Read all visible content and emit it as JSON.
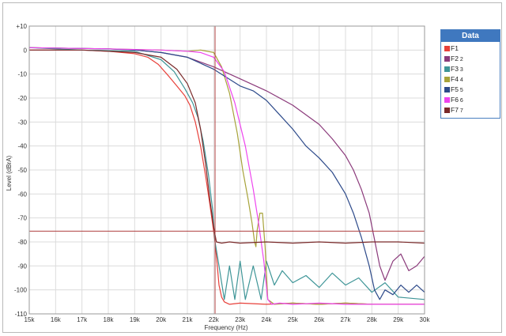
{
  "chart_data": {
    "type": "line",
    "title": "",
    "xlabel": "Frequency (Hz)",
    "ylabel": "Level (dBrA)",
    "xlim": [
      15000,
      30000
    ],
    "ylim": [
      -110,
      10
    ],
    "x_ticks": [
      15000,
      16000,
      17000,
      18000,
      19000,
      20000,
      21000,
      22000,
      23000,
      24000,
      25000,
      26000,
      27000,
      28000,
      29000,
      30000
    ],
    "x_tick_labels": [
      "15k",
      "16k",
      "17k",
      "18k",
      "19k",
      "20k",
      "21k",
      "22k",
      "23k",
      "24k",
      "25k",
      "26k",
      "27k",
      "28k",
      "29k",
      "30k"
    ],
    "y_ticks": [
      10,
      0,
      -10,
      -20,
      -30,
      -40,
      -50,
      -60,
      -70,
      -80,
      -90,
      -100,
      -110
    ],
    "y_tick_labels": [
      "+10",
      "0",
      "-10",
      "-20",
      "-30",
      "-40",
      "-50",
      "-60",
      "-70",
      "-80",
      "-90",
      "-100",
      "-110"
    ],
    "grid": true,
    "legend_position": "top-right",
    "legend_title": "Data",
    "cursor": {
      "x": 22050,
      "y": -75.5,
      "color": "#b04040"
    },
    "series": [
      {
        "name": "F1",
        "sub": "",
        "color": "#e8403a",
        "x": [
          15000,
          17000,
          18000,
          19000,
          19500,
          19900,
          20300,
          20600,
          20900,
          21100,
          21300,
          21500,
          21700,
          21850,
          21950,
          22050,
          22120,
          22200,
          22300,
          22400,
          22600,
          23000,
          24000,
          25000,
          26000,
          27000,
          28000,
          29000,
          30000
        ],
        "y": [
          0,
          0,
          -0.5,
          -1.5,
          -3,
          -6,
          -11,
          -15,
          -19,
          -23,
          -30,
          -40,
          -53,
          -64,
          -72,
          -80,
          -88,
          -98,
          -103,
          -105,
          -106,
          -105.5,
          -106,
          -105.5,
          -106,
          -105.5,
          -106,
          -106,
          -106
        ]
      },
      {
        "name": "F2",
        "sub": "2",
        "color": "#8b3a7b",
        "x": [
          15000,
          18000,
          19000,
          20000,
          21000,
          22000,
          23000,
          24000,
          25000,
          26000,
          26500,
          27000,
          27300,
          27600,
          27900,
          28100,
          28300,
          28500,
          28800,
          29100,
          29400,
          29700,
          30000
        ],
        "y": [
          1,
          0.5,
          0,
          -1,
          -3,
          -7,
          -12,
          -17,
          -23,
          -31,
          -37,
          -44,
          -50,
          -58,
          -68,
          -79,
          -90,
          -96,
          -88,
          -85,
          -92,
          -90,
          -86
        ]
      },
      {
        "name": "F3",
        "sub": "3",
        "color": "#3e9597",
        "x": [
          15000,
          17000,
          19000,
          20000,
          20500,
          20900,
          21200,
          21400,
          21600,
          21800,
          21950,
          22050,
          22200,
          22400,
          22600,
          22800,
          23000,
          23200,
          23500,
          23800,
          24000,
          24300,
          24600,
          25000,
          25500,
          26000,
          26500,
          27000,
          27500,
          28000,
          28500,
          29000,
          30000
        ],
        "y": [
          1,
          0,
          -0.5,
          -4,
          -9,
          -16,
          -22,
          -28,
          -38,
          -52,
          -66,
          -80,
          -90,
          -104,
          -90,
          -104,
          -88,
          -104,
          -90,
          -104,
          -88,
          -98,
          -92,
          -97,
          -94,
          -99,
          -93,
          -98,
          -95,
          -101,
          -97,
          -103,
          -104
        ]
      },
      {
        "name": "F4",
        "sub": "4",
        "color": "#a7a33a",
        "x": [
          15000,
          18000,
          20000,
          21000,
          21500,
          22000,
          22300,
          22600,
          22900,
          23100,
          23300,
          23450,
          23550,
          23600,
          23650,
          23750,
          23850,
          23950,
          24050,
          24300,
          25000,
          26000,
          27000,
          28000,
          29000,
          30000
        ],
        "y": [
          1,
          0.5,
          0,
          -0.5,
          0,
          -1,
          -7,
          -18,
          -35,
          -50,
          -62,
          -72,
          -80,
          -82,
          -75,
          -68,
          -68,
          -82,
          -104,
          -106,
          -105.5,
          -106,
          -105.5,
          -106,
          -106,
          -106
        ]
      },
      {
        "name": "F5",
        "sub": "5",
        "color": "#2d4a8a",
        "x": [
          15000,
          18000,
          19000,
          20000,
          21000,
          22000,
          23000,
          23500,
          24000,
          24500,
          25000,
          25500,
          26000,
          26500,
          27000,
          27300,
          27600,
          27900,
          28100,
          28300,
          28500,
          28800,
          29100,
          29400,
          29700,
          30000
        ],
        "y": [
          1,
          0.5,
          0,
          -1,
          -3,
          -8,
          -15,
          -17,
          -21,
          -27,
          -33,
          -40,
          -45,
          -51,
          -60,
          -68,
          -78,
          -90,
          -100,
          -104,
          -100,
          -102,
          -98,
          -101,
          -98,
          -101
        ]
      },
      {
        "name": "F6",
        "sub": "6",
        "color": "#ee44ee",
        "x": [
          15000,
          18000,
          20000,
          21000,
          21500,
          22000,
          22400,
          22800,
          23200,
          23500,
          23700,
          23900,
          24050,
          24200,
          24500,
          25000,
          26000,
          27000,
          28000,
          29000,
          30000
        ],
        "y": [
          1,
          0.5,
          0,
          -0.5,
          -1,
          -3,
          -9,
          -22,
          -40,
          -58,
          -72,
          -88,
          -104,
          -106,
          -105.5,
          -106,
          -105.5,
          -106,
          -106,
          -106,
          -106
        ]
      },
      {
        "name": "F7",
        "sub": "7",
        "color": "#7a2a2a",
        "x": [
          15000,
          17000,
          19000,
          20000,
          20600,
          21000,
          21300,
          21500,
          21700,
          21850,
          22000,
          22100,
          22300,
          22600,
          23000,
          24000,
          25000,
          26000,
          27000,
          28000,
          29000,
          30000
        ],
        "y": [
          0,
          0,
          -1,
          -3,
          -8,
          -14,
          -22,
          -33,
          -48,
          -62,
          -74,
          -80,
          -80.5,
          -80,
          -80.5,
          -80,
          -80.5,
          -80,
          -80.5,
          -80,
          -80,
          -80.5
        ]
      }
    ]
  }
}
